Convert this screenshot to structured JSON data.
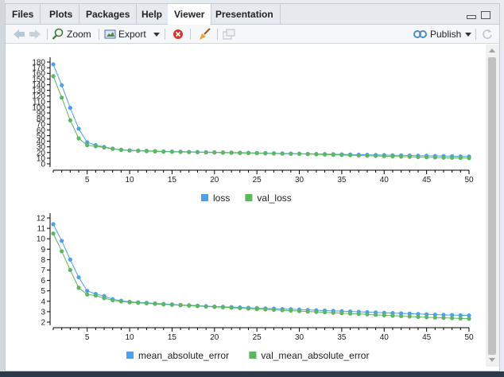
{
  "tabs": [
    {
      "label": "Files",
      "active": false
    },
    {
      "label": "Plots",
      "active": false
    },
    {
      "label": "Packages",
      "active": false
    },
    {
      "label": "Help",
      "active": false
    },
    {
      "label": "Viewer",
      "active": true
    },
    {
      "label": "Presentation",
      "active": false
    }
  ],
  "toolbar": {
    "zoom_label": "Zoom",
    "export_label": "Export",
    "publish_label": "Publish",
    "icons": [
      "back-arrow-icon",
      "forward-arrow-icon",
      "zoom-icon",
      "export-icon",
      "stop-icon",
      "broom-icon",
      "popout-icon",
      "publish-icon",
      "refresh-icon"
    ]
  },
  "colors": {
    "series_a": "#4ba0f2",
    "series_b": "#5cb85c",
    "stop_red": "#d9342b"
  },
  "chart_data": [
    {
      "type": "line",
      "x": [
        1,
        2,
        3,
        4,
        5,
        6,
        7,
        8,
        9,
        10,
        11,
        12,
        13,
        14,
        15,
        16,
        17,
        18,
        19,
        20,
        21,
        22,
        23,
        24,
        25,
        26,
        27,
        28,
        29,
        30,
        31,
        32,
        33,
        34,
        35,
        36,
        37,
        38,
        39,
        40,
        41,
        42,
        43,
        44,
        45,
        46,
        47,
        48,
        49,
        50
      ],
      "series": [
        {
          "name": "loss",
          "values": [
            176,
            139,
            99,
            62,
            38,
            33,
            30,
            27,
            25,
            24,
            23.5,
            23,
            22.5,
            22,
            21.8,
            21.5,
            21.2,
            21,
            20.7,
            20.5,
            20.2,
            20,
            19.8,
            19.5,
            19.2,
            19,
            18.7,
            18.5,
            18.2,
            18,
            17.7,
            17.5,
            17.2,
            17,
            16.7,
            16.5,
            16.2,
            16,
            15.7,
            15.5,
            15.2,
            15,
            14.7,
            14.5,
            14.2,
            14,
            13.8,
            13.5,
            13.2,
            13
          ]
        },
        {
          "name": "val_loss",
          "values": [
            155,
            117,
            77,
            45,
            33,
            31,
            29,
            26.5,
            24.5,
            23.5,
            23,
            22.5,
            22,
            21.5,
            21.2,
            21,
            20.7,
            20.5,
            20.2,
            20,
            19.7,
            19.5,
            19.2,
            19,
            18.7,
            18.5,
            18.2,
            18,
            17.7,
            17.5,
            17.2,
            16.8,
            16.4,
            16,
            15.6,
            15.2,
            14.8,
            14.4,
            14,
            13.6,
            13.2,
            12.8,
            12.4,
            12,
            11.7,
            11.4,
            11.1,
            10.8,
            10.5,
            10.2
          ]
        }
      ],
      "ylim": [
        0,
        180
      ],
      "yticks": [
        0,
        10,
        20,
        30,
        40,
        50,
        60,
        70,
        80,
        90,
        100,
        110,
        120,
        130,
        140,
        150,
        160,
        170,
        180
      ],
      "xticks": [
        5,
        10,
        15,
        20,
        25,
        30,
        35,
        40,
        45,
        50
      ],
      "legend": "bottom-center"
    },
    {
      "type": "line",
      "x": [
        1,
        2,
        3,
        4,
        5,
        6,
        7,
        8,
        9,
        10,
        11,
        12,
        13,
        14,
        15,
        16,
        17,
        18,
        19,
        20,
        21,
        22,
        23,
        24,
        25,
        26,
        27,
        28,
        29,
        30,
        31,
        32,
        33,
        34,
        35,
        36,
        37,
        38,
        39,
        40,
        41,
        42,
        43,
        44,
        45,
        46,
        47,
        48,
        49,
        50
      ],
      "series": [
        {
          "name": "mean_absolute_error",
          "values": [
            11.4,
            9.8,
            8.0,
            6.3,
            5.0,
            4.7,
            4.5,
            4.2,
            4.05,
            3.95,
            3.9,
            3.85,
            3.8,
            3.75,
            3.7,
            3.65,
            3.62,
            3.58,
            3.54,
            3.5,
            3.47,
            3.44,
            3.41,
            3.38,
            3.35,
            3.32,
            3.29,
            3.26,
            3.23,
            3.2,
            3.17,
            3.14,
            3.11,
            3.08,
            3.05,
            3.02,
            2.99,
            2.96,
            2.93,
            2.9,
            2.87,
            2.84,
            2.81,
            2.78,
            2.75,
            2.72,
            2.7,
            2.68,
            2.66,
            2.64
          ]
        },
        {
          "name": "val_mean_absolute_error",
          "values": [
            10.5,
            8.8,
            7.0,
            5.3,
            4.65,
            4.55,
            4.3,
            4.1,
            3.98,
            3.9,
            3.85,
            3.8,
            3.75,
            3.7,
            3.66,
            3.62,
            3.58,
            3.54,
            3.5,
            3.46,
            3.42,
            3.38,
            3.34,
            3.3,
            3.26,
            3.22,
            3.18,
            3.14,
            3.1,
            3.06,
            3.02,
            2.98,
            2.94,
            2.9,
            2.86,
            2.82,
            2.78,
            2.74,
            2.7,
            2.66,
            2.62,
            2.58,
            2.54,
            2.5,
            2.47,
            2.44,
            2.41,
            2.38,
            2.35,
            2.32
          ]
        }
      ],
      "ylim": [
        2,
        12
      ],
      "yticks": [
        2,
        3,
        4,
        5,
        6,
        7,
        8,
        9,
        10,
        11,
        12
      ],
      "xticks": [
        5,
        10,
        15,
        20,
        25,
        30,
        35,
        40,
        45,
        50
      ],
      "legend": "bottom-center"
    }
  ]
}
